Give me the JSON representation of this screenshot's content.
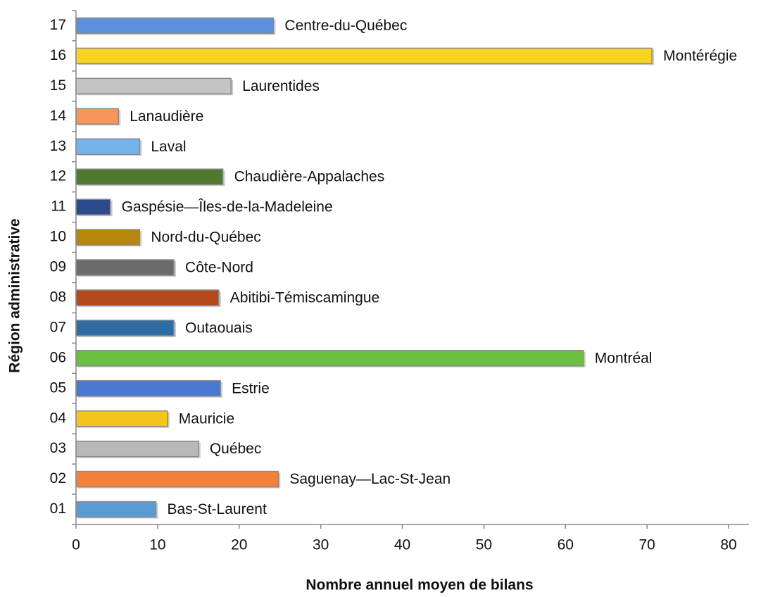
{
  "chart_data": {
    "type": "bar",
    "orientation": "horizontal",
    "xlabel": "Nombre annuel moyen de bilans",
    "ylabel": "Région administrative",
    "categories": [
      "01",
      "02",
      "03",
      "04",
      "05",
      "06",
      "07",
      "08",
      "09",
      "10",
      "11",
      "12",
      "13",
      "14",
      "15",
      "16",
      "17"
    ],
    "bar_labels": [
      "Bas-St-Laurent",
      "Saguenay—Lac-St-Jean",
      "Québec",
      "Mauricie",
      "Estrie",
      "Montréal",
      "Outaouais",
      "Abitibi-Témiscamingue",
      "Côte-Nord",
      "Nord-du-Québec",
      "Gaspésie—Îles-de-la-Madeleine",
      "Chaudière-Appalaches",
      "Laval",
      "Lanaudière",
      "Laurentides",
      "Montérégie",
      "Centre-du-Québec"
    ],
    "values": [
      9.8,
      24.8,
      15,
      11.2,
      17.7,
      62.2,
      12,
      17.5,
      12,
      7.8,
      4.2,
      18,
      7.8,
      5.2,
      19,
      70.6,
      24.2
    ],
    "colors": [
      "#5b9bd5",
      "#f4803a",
      "#b8b8b8",
      "#f5c61a",
      "#4a78d0",
      "#6cbf3f",
      "#2e6ca4",
      "#b5491b",
      "#6b6b6b",
      "#b8860b",
      "#2c4a8c",
      "#4e7a2e",
      "#74b4ea",
      "#f7965a",
      "#c4c4c4",
      "#f9d423",
      "#5d8fdc"
    ],
    "xlim": [
      0,
      82.5
    ],
    "xticks": [
      0,
      10,
      20,
      30,
      40,
      50,
      60,
      70,
      80
    ]
  }
}
